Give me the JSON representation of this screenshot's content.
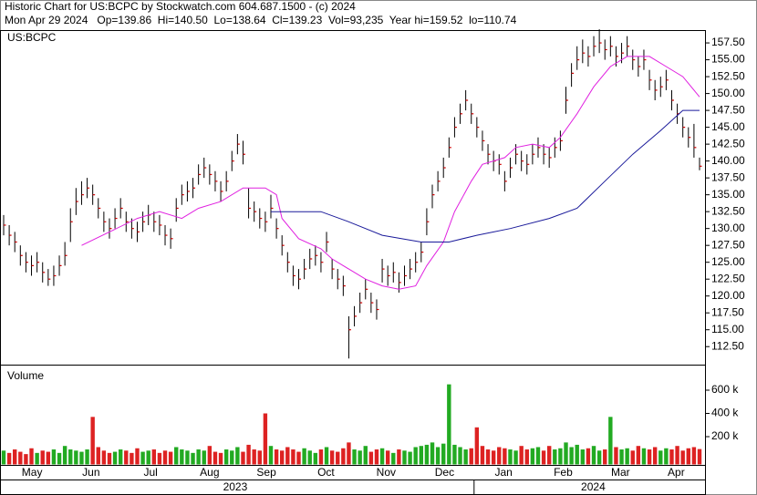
{
  "header": {
    "line1": "Historic Chart for US:BCPC by Stockwatch.com 604.687.1500 - (c) 2024",
    "line2": "Mon Apr 29 2024   Op=139.86  Hi=140.50  Lo=138.64  Cl=139.23  Vol=93,235  Year hi=159.52  lo=110.74"
  },
  "chart_data": [
    {
      "type": "ohlc",
      "label": "US:BCPC",
      "color": "#000000",
      "close_color": "#cc0000",
      "high": [
        132,
        130.5,
        129.5,
        127.5,
        126.5,
        126,
        126.5,
        125,
        124,
        124.5,
        126,
        128,
        133,
        136,
        137,
        137.5,
        136.5,
        134.5,
        132.5,
        131.5,
        133,
        134.5,
        132.5,
        131.5,
        131,
        132.5,
        133.5,
        132.5,
        132,
        130.5,
        130,
        134.5,
        136.5,
        137,
        137.5,
        139.5,
        140.5,
        139.5,
        138.5,
        137,
        138.5,
        141.5,
        144,
        143,
        136,
        134,
        133,
        132.5,
        135,
        131.5,
        129,
        126.5,
        124.5,
        124,
        125.5,
        127,
        127.5,
        126.5,
        129.5,
        125.5,
        124,
        123,
        117,
        118.5,
        120.5,
        122.5,
        120.5,
        119.5,
        125.5,
        124.5,
        125,
        123.5,
        124.5,
        125.5,
        126.5,
        128,
        133,
        136.5,
        138.5,
        140.5,
        143.5,
        146.5,
        148.5,
        150.5,
        148.5,
        146.5,
        144.5,
        142.5,
        141.5,
        141,
        138.5,
        140.5,
        142.5,
        141.5,
        141,
        142.5,
        143.5,
        142.5,
        142,
        143.5,
        144.5,
        151,
        154.5,
        157,
        158,
        157,
        158.5,
        159.52,
        158,
        158.5,
        157,
        157.5,
        158.5,
        156.5,
        155.5,
        156.5,
        153.5,
        152,
        152.5,
        153.5,
        150.5,
        148.5,
        146.5,
        145,
        145.5,
        140.5
      ],
      "low": [
        129,
        127.5,
        126.5,
        124.5,
        123.5,
        123,
        123.5,
        122,
        121.5,
        121.5,
        123,
        124.5,
        128,
        132,
        133.5,
        134.5,
        133.5,
        131.5,
        129.5,
        128.5,
        130,
        131.5,
        129.5,
        128.5,
        128,
        129.5,
        130.5,
        129.5,
        129,
        127.5,
        127,
        131,
        133.5,
        134,
        134.5,
        136.5,
        137.5,
        136.5,
        135.5,
        134,
        135.5,
        138.5,
        141,
        139.5,
        131.5,
        131,
        130,
        129.5,
        131.5,
        128.5,
        126,
        123.5,
        121.5,
        121,
        122.5,
        124,
        124.5,
        123.5,
        126.5,
        122.5,
        121,
        120,
        110.74,
        115.5,
        117.5,
        119.5,
        117.5,
        116.5,
        122,
        121.5,
        122,
        120.5,
        121.5,
        122.5,
        123.5,
        125,
        129,
        133,
        135.5,
        137.5,
        140.5,
        143.5,
        145.5,
        147.5,
        145.5,
        143.5,
        141.5,
        139.5,
        138.5,
        138,
        135.5,
        137.5,
        139.5,
        138.5,
        138,
        139.5,
        140.5,
        139.5,
        139,
        140.5,
        141.5,
        147,
        151,
        153.5,
        154.5,
        154,
        155.5,
        156,
        155,
        155.5,
        154,
        154.5,
        155.5,
        153.5,
        152.5,
        153.5,
        150.5,
        149,
        149.5,
        150.5,
        147.5,
        145.5,
        143.5,
        142,
        140.5,
        138.64
      ],
      "close": [
        130.5,
        129,
        128,
        126,
        125,
        124.5,
        125,
        123.5,
        122.5,
        123,
        124.5,
        126,
        131,
        134,
        135,
        136,
        135,
        133,
        131,
        130,
        131.5,
        133,
        131,
        130,
        129.5,
        131,
        132,
        131,
        130.5,
        129,
        128.5,
        133,
        135,
        135.5,
        136,
        138,
        139,
        138,
        137,
        135.5,
        137,
        140,
        142.5,
        141,
        133,
        132.5,
        131.5,
        131,
        133,
        130,
        127.5,
        125,
        123,
        122.5,
        124,
        125.5,
        126,
        125,
        128,
        124,
        122.5,
        121.5,
        115,
        117,
        119,
        121,
        119,
        118,
        124,
        123,
        123.5,
        122,
        123,
        124,
        125,
        126.5,
        131,
        135,
        137,
        139,
        142,
        145,
        147,
        149,
        147,
        145,
        143,
        141,
        140,
        139.5,
        137,
        139,
        141,
        140,
        139.5,
        141,
        142,
        141,
        140.5,
        142,
        143,
        149,
        153,
        155,
        156,
        155.5,
        157,
        157.5,
        156.5,
        157,
        155.5,
        156,
        157,
        155,
        154,
        155,
        152,
        150.5,
        151,
        152,
        149,
        147,
        145,
        143.5,
        142,
        139.23
      ],
      "moving_averages": [
        {
          "color": "#e020e0",
          "x": [
            14,
            19,
            24,
            28,
            32,
            35,
            39,
            43,
            47,
            49,
            50,
            53,
            57,
            59,
            62,
            65,
            68,
            71,
            74,
            76,
            79,
            81,
            84,
            86,
            90,
            92,
            95,
            98,
            100,
            103,
            106,
            109,
            112,
            116,
            119,
            122,
            125
          ],
          "values": [
            127.5,
            129.5,
            131.5,
            132.5,
            131.5,
            133,
            134,
            136,
            136,
            135,
            131.5,
            128.5,
            127,
            125.5,
            124,
            122.5,
            121.5,
            121,
            121.5,
            124.5,
            128,
            132.5,
            137,
            139.5,
            140.5,
            142,
            142.5,
            142,
            143.5,
            147,
            151,
            154,
            155.5,
            155.5,
            154,
            152.5,
            149.5
          ]
        },
        {
          "color": "#1a1a9a",
          "x": [
            48,
            57,
            62,
            68,
            75,
            80,
            85,
            91,
            98,
            103,
            108,
            113,
            118,
            122,
            125
          ],
          "values": [
            132.5,
            132.5,
            131,
            129,
            128,
            128,
            129,
            130,
            131.5,
            133,
            137,
            141,
            144.5,
            147.5,
            147.5
          ]
        }
      ],
      "ylim": [
        110.1,
        159.4
      ],
      "yticks": [
        {
          "value": 112.5,
          "label": "112.50"
        },
        {
          "value": 115,
          "label": "115.00"
        },
        {
          "value": 117.5,
          "label": "117.50"
        },
        {
          "value": 120,
          "label": "120.00"
        },
        {
          "value": 122.5,
          "label": "122.50"
        },
        {
          "value": 125,
          "label": "125.00"
        },
        {
          "value": 127.5,
          "label": "127.50"
        },
        {
          "value": 130,
          "label": "130.00"
        },
        {
          "value": 132.5,
          "label": "132.50"
        },
        {
          "value": 135,
          "label": "135.00"
        },
        {
          "value": 137.5,
          "label": "137.50"
        },
        {
          "value": 140,
          "label": "140.00"
        },
        {
          "value": 142.5,
          "label": "142.50"
        },
        {
          "value": 145,
          "label": "145.00"
        },
        {
          "value": 147.5,
          "label": "147.50"
        },
        {
          "value": 150,
          "label": "150.00"
        },
        {
          "value": 152.5,
          "label": "152.50"
        },
        {
          "value": 155,
          "label": "155.00"
        },
        {
          "value": 157.5,
          "label": "157.50"
        }
      ],
      "xticks": [
        {
          "value": 5.1,
          "label": "May"
        },
        {
          "value": 15.7,
          "label": "Jun"
        },
        {
          "value": 26.4,
          "label": "Jul"
        },
        {
          "value": 37,
          "label": "Aug"
        },
        {
          "value": 47.2,
          "label": "Sep"
        },
        {
          "value": 57.9,
          "label": "Oct"
        },
        {
          "value": 68.7,
          "label": "Nov"
        },
        {
          "value": 79.2,
          "label": "Dec"
        },
        {
          "value": 89.8,
          "label": "Jan"
        },
        {
          "value": 100.5,
          "label": "Feb"
        },
        {
          "value": 110.8,
          "label": "Mar"
        },
        {
          "value": 120.8,
          "label": "Apr"
        }
      ],
      "year_ticks": [
        {
          "value": 41.6,
          "label": "2023"
        },
        {
          "value": 105.9,
          "label": "2024"
        }
      ]
    },
    {
      "type": "volume",
      "label": "Volume",
      "up_color": "#22aa22",
      "down_color": "#dd2222",
      "values": [
        80000,
        60000,
        90000,
        70000,
        50000,
        100000,
        60000,
        80000,
        70000,
        90000,
        60000,
        120000,
        90000,
        80000,
        70000,
        90000,
        370000,
        110000,
        80000,
        60000,
        70000,
        90000,
        80000,
        60000,
        100000,
        70000,
        80000,
        90000,
        60000,
        80000,
        70000,
        110000,
        90000,
        80000,
        60000,
        90000,
        80000,
        120000,
        70000,
        60000,
        90000,
        80000,
        110000,
        70000,
        130000,
        90000,
        80000,
        400000,
        120000,
        90000,
        80000,
        110000,
        90000,
        70000,
        100000,
        80000,
        60000,
        90000,
        110000,
        80000,
        70000,
        100000,
        150000,
        90000,
        80000,
        120000,
        70000,
        90000,
        100000,
        80000,
        60000,
        90000,
        80000,
        70000,
        110000,
        120000,
        130000,
        150000,
        110000,
        140000,
        650000,
        130000,
        110000,
        90000,
        100000,
        280000,
        120000,
        90000,
        80000,
        110000,
        100000,
        90000,
        80000,
        120000,
        90000,
        100000,
        110000,
        80000,
        120000,
        90000,
        100000,
        150000,
        110000,
        130000,
        90000,
        100000,
        120000,
        80000,
        90000,
        370000,
        110000,
        90000,
        100000,
        80000,
        120000,
        100000,
        90000,
        110000,
        80000,
        100000,
        90000,
        120000,
        80000,
        100000,
        110000,
        93235
      ],
      "ylim": [
        0,
        800000
      ],
      "yticks": [
        {
          "value": 200000,
          "label": "200 k"
        },
        {
          "value": 400000,
          "label": "400 k"
        },
        {
          "value": 600000,
          "label": "600 k"
        }
      ]
    }
  ]
}
